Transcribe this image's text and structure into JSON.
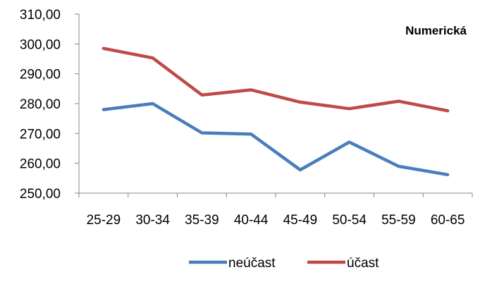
{
  "chart_data": {
    "type": "line",
    "title": "Numerická",
    "categories": [
      "25-29",
      "30-34",
      "35-39",
      "40-44",
      "45-49",
      "50-54",
      "55-59",
      "60-65"
    ],
    "y_tick_labels": [
      "250,00",
      "260,00",
      "270,00",
      "280,00",
      "290,00",
      "300,00",
      "310,00"
    ],
    "ylim": [
      250,
      310
    ],
    "grid": false,
    "legend_position": "bottom",
    "series": [
      {
        "name": "neúčast",
        "color": "#4A7EBB",
        "values": [
          278.0,
          280.0,
          270.2,
          269.8,
          257.8,
          267.1,
          259.0,
          256.2
        ]
      },
      {
        "name": "účast",
        "color": "#BE4B48",
        "values": [
          298.5,
          295.3,
          282.9,
          284.6,
          280.5,
          278.3,
          280.8,
          277.6
        ]
      }
    ]
  }
}
